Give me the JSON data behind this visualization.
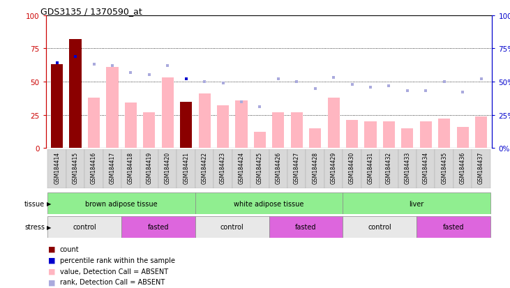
{
  "title": "GDS3135 / 1370590_at",
  "samples": [
    "GSM184414",
    "GSM184415",
    "GSM184416",
    "GSM184417",
    "GSM184418",
    "GSM184419",
    "GSM184420",
    "GSM184421",
    "GSM184422",
    "GSM184423",
    "GSM184424",
    "GSM184425",
    "GSM184426",
    "GSM184427",
    "GSM184428",
    "GSM184429",
    "GSM184430",
    "GSM184431",
    "GSM184432",
    "GSM184433",
    "GSM184434",
    "GSM184435",
    "GSM184436",
    "GSM184437"
  ],
  "value_bars": [
    63,
    82,
    38,
    61,
    34,
    27,
    53,
    35,
    41,
    32,
    36,
    12,
    27,
    27,
    15,
    38,
    21,
    20,
    20,
    15,
    20,
    22,
    16,
    24
  ],
  "rank_dots": [
    64,
    69,
    63,
    62,
    57,
    55,
    62,
    52,
    50,
    49,
    35,
    31,
    52,
    50,
    45,
    53,
    48,
    46,
    47,
    43,
    43,
    50,
    42,
    52
  ],
  "is_count_bar": [
    true,
    true,
    false,
    false,
    false,
    false,
    false,
    true,
    false,
    false,
    false,
    false,
    false,
    false,
    false,
    false,
    false,
    false,
    false,
    false,
    false,
    false,
    false,
    false
  ],
  "is_count_dot": [
    true,
    true,
    false,
    false,
    false,
    false,
    false,
    true,
    false,
    false,
    false,
    false,
    false,
    false,
    false,
    false,
    false,
    false,
    false,
    false,
    false,
    false,
    false,
    false
  ],
  "tissues": [
    {
      "label": "brown adipose tissue",
      "start": 0,
      "end": 7
    },
    {
      "label": "white adipose tissue",
      "start": 8,
      "end": 15
    },
    {
      "label": "liver",
      "start": 16,
      "end": 23
    }
  ],
  "stresses": [
    {
      "label": "control",
      "start": 0,
      "end": 3,
      "fasted": false
    },
    {
      "label": "fasted",
      "start": 4,
      "end": 7,
      "fasted": true
    },
    {
      "label": "control",
      "start": 8,
      "end": 11,
      "fasted": false
    },
    {
      "label": "fasted",
      "start": 12,
      "end": 15,
      "fasted": true
    },
    {
      "label": "control",
      "start": 16,
      "end": 19,
      "fasted": false
    },
    {
      "label": "fasted",
      "start": 20,
      "end": 23,
      "fasted": true
    }
  ],
  "ylim": [
    0,
    100
  ],
  "yticks": [
    0,
    25,
    50,
    75,
    100
  ],
  "bar_absent_color": "#FFB6C1",
  "bar_count_color": "#8B0000",
  "dot_absent_color": "#AAAADD",
  "dot_count_color": "#0000CD",
  "axis_left_color": "#CC0000",
  "axis_right_color": "#0000CC",
  "tissue_color": "#90EE90",
  "stress_control_color": "#E8E8E8",
  "stress_fasted_color": "#DD66DD",
  "bg_color": "#FFFFFF",
  "cell_bg_color": "#D8D8D8"
}
